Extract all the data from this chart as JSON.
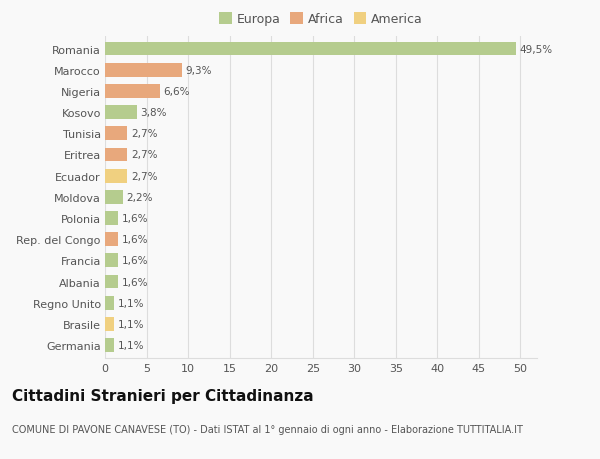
{
  "countries": [
    "Romania",
    "Marocco",
    "Nigeria",
    "Kosovo",
    "Tunisia",
    "Eritrea",
    "Ecuador",
    "Moldova",
    "Polonia",
    "Rep. del Congo",
    "Francia",
    "Albania",
    "Regno Unito",
    "Brasile",
    "Germania"
  ],
  "values": [
    49.5,
    9.3,
    6.6,
    3.8,
    2.7,
    2.7,
    2.7,
    2.2,
    1.6,
    1.6,
    1.6,
    1.6,
    1.1,
    1.1,
    1.1
  ],
  "labels": [
    "49,5%",
    "9,3%",
    "6,6%",
    "3,8%",
    "2,7%",
    "2,7%",
    "2,7%",
    "2,2%",
    "1,6%",
    "1,6%",
    "1,6%",
    "1,6%",
    "1,1%",
    "1,1%",
    "1,1%"
  ],
  "colors": [
    "#b5cc8e",
    "#e8a87c",
    "#e8a87c",
    "#b5cc8e",
    "#e8a87c",
    "#e8a87c",
    "#f0d080",
    "#b5cc8e",
    "#b5cc8e",
    "#e8a87c",
    "#b5cc8e",
    "#b5cc8e",
    "#b5cc8e",
    "#f0d080",
    "#b5cc8e"
  ],
  "legend_colors": {
    "Europa": "#b5cc8e",
    "Africa": "#e8a87c",
    "America": "#f0d080"
  },
  "xlim": [
    0,
    52
  ],
  "xticks": [
    0,
    5,
    10,
    15,
    20,
    25,
    30,
    35,
    40,
    45,
    50
  ],
  "title": "Cittadini Stranieri per Cittadinanza",
  "subtitle": "COMUNE DI PAVONE CANAVESE (TO) - Dati ISTAT al 1° gennaio di ogni anno - Elaborazione TUTTITALIA.IT",
  "background_color": "#f9f9f9",
  "grid_color": "#dddddd",
  "bar_height": 0.65,
  "label_fontsize": 7.5,
  "title_fontsize": 11,
  "subtitle_fontsize": 7,
  "tick_fontsize": 8,
  "legend_fontsize": 9
}
